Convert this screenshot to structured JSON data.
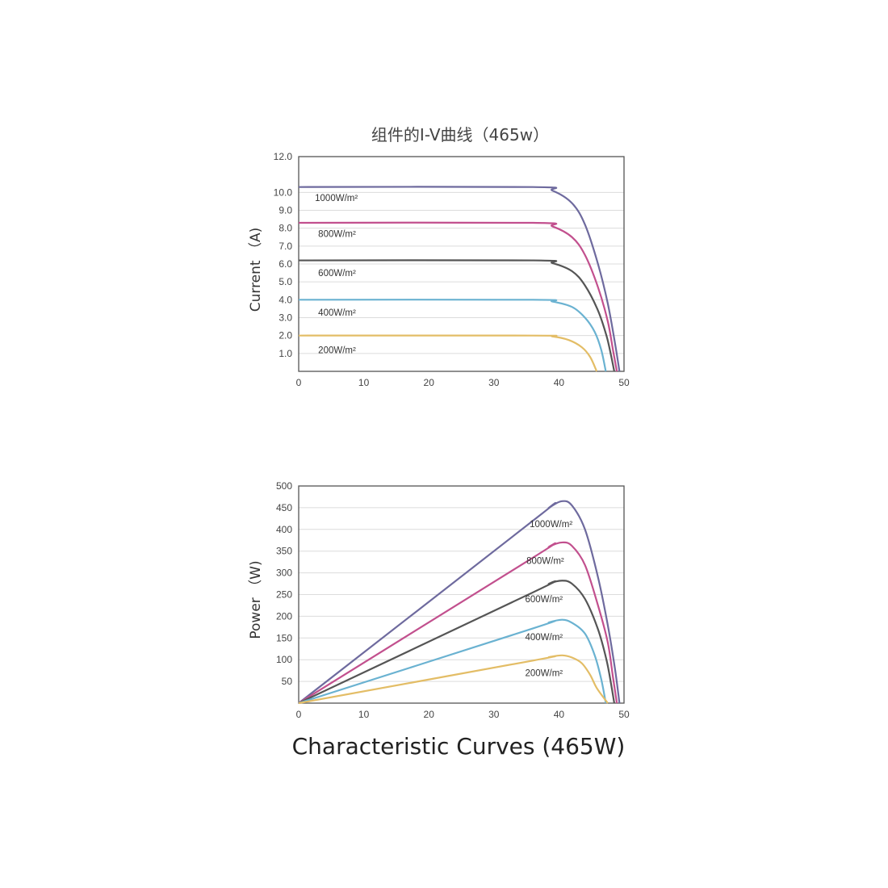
{
  "caption": "Characteristic Curves (465W)",
  "chart_data": [
    {
      "type": "line",
      "title": "组件的I-V曲线（465w）",
      "xlabel": "",
      "ylabel": "Current （A)",
      "xlim": [
        0,
        50
      ],
      "ylim": [
        0,
        12
      ],
      "x_ticks": [
        "0",
        "10",
        "20",
        "30",
        "40",
        "50"
      ],
      "y_ticks": [
        "1.0",
        "2.0",
        "3.0",
        "4.0",
        "5.0",
        "6.0",
        "7.0",
        "8.0",
        "9.0",
        "10.0",
        "12.0"
      ],
      "y_tick_values": [
        1,
        2,
        3,
        4,
        5,
        6,
        7,
        8,
        9,
        10,
        12
      ],
      "grid": true,
      "series": [
        {
          "name": "1000W/m²",
          "color": "#6e6a9e",
          "x": [
            0,
            36,
            39,
            42,
            44,
            46,
            47.5,
            48.6,
            49.3
          ],
          "y": [
            10.3,
            10.3,
            10.1,
            9.4,
            8.2,
            6.0,
            3.8,
            1.6,
            0
          ]
        },
        {
          "name": "800W/m²",
          "color": "#c2508e",
          "x": [
            0,
            36,
            39,
            42,
            44,
            46,
            47.5,
            48.3,
            48.9
          ],
          "y": [
            8.3,
            8.3,
            8.1,
            7.5,
            6.5,
            4.7,
            2.8,
            1.2,
            0
          ]
        },
        {
          "name": "600W/m²",
          "color": "#555555",
          "x": [
            0,
            36,
            39,
            42,
            44,
            46,
            47.3,
            48.0,
            48.5
          ],
          "y": [
            6.2,
            6.2,
            6.05,
            5.6,
            4.8,
            3.4,
            2.0,
            0.9,
            0
          ]
        },
        {
          "name": "400W/m²",
          "color": "#6ab2d1",
          "x": [
            0,
            36,
            39,
            42,
            44,
            45.5,
            46.5,
            47.2
          ],
          "y": [
            4.0,
            4.0,
            3.9,
            3.6,
            3.0,
            2.2,
            1.2,
            0
          ]
        },
        {
          "name": "200W/m²",
          "color": "#e3bd66",
          "x": [
            0,
            36,
            39,
            41.5,
            43.5,
            44.8,
            45.8
          ],
          "y": [
            2.0,
            2.0,
            1.95,
            1.75,
            1.35,
            0.8,
            0
          ]
        }
      ],
      "annotations": [
        {
          "text": "1000W/m²",
          "x": 2.5,
          "y": 9.7
        },
        {
          "text": "800W/m²",
          "x": 3,
          "y": 7.7
        },
        {
          "text": "600W/m²",
          "x": 3,
          "y": 5.5
        },
        {
          "text": "400W/m²",
          "x": 3,
          "y": 3.3
        },
        {
          "text": "200W/m²",
          "x": 3,
          "y": 1.2
        }
      ]
    },
    {
      "type": "line",
      "title": "",
      "xlabel": "",
      "ylabel": "Power （W)",
      "xlim": [
        0,
        50
      ],
      "ylim": [
        0,
        500
      ],
      "x_ticks": [
        "0",
        "10",
        "20",
        "30",
        "40",
        "50"
      ],
      "y_ticks": [
        "50",
        "100",
        "150",
        "200",
        "250",
        "300",
        "350",
        "400",
        "450",
        "500"
      ],
      "y_tick_values": [
        50,
        100,
        150,
        200,
        250,
        300,
        350,
        400,
        450,
        500
      ],
      "grid": true,
      "series": [
        {
          "name": "1000W/m²",
          "color": "#6e6a9e",
          "x": [
            0,
            36,
            38.5,
            40.5,
            42,
            44,
            46,
            47.5,
            48.6,
            49.3
          ],
          "y": [
            0,
            420,
            450,
            465,
            455,
            400,
            290,
            180,
            80,
            0
          ]
        },
        {
          "name": "800W/m²",
          "color": "#c2508e",
          "x": [
            0,
            36,
            38.5,
            40.5,
            42,
            44,
            46,
            47.5,
            48.3,
            48.9
          ],
          "y": [
            0,
            335,
            360,
            370,
            362,
            318,
            225,
            140,
            60,
            0
          ]
        },
        {
          "name": "600W/m²",
          "color": "#555555",
          "x": [
            0,
            36,
            38.5,
            40.5,
            42,
            44,
            46,
            47.3,
            48.0,
            48.5
          ],
          "y": [
            0,
            255,
            275,
            282,
            275,
            240,
            170,
            100,
            45,
            0
          ]
        },
        {
          "name": "400W/m²",
          "color": "#6ab2d1",
          "x": [
            0,
            36,
            38.5,
            40.5,
            42,
            44,
            45.5,
            46.5,
            47.2
          ],
          "y": [
            0,
            172,
            186,
            192,
            185,
            160,
            110,
            55,
            0
          ]
        },
        {
          "name": "200W/m²",
          "color": "#e3bd66",
          "x": [
            0,
            36,
            38.5,
            40.5,
            42,
            43.5,
            44.8,
            45.8,
            47.5
          ],
          "y": [
            0,
            98,
            106,
            110,
            105,
            92,
            65,
            35,
            0
          ]
        }
      ],
      "annotations": [
        {
          "text": "1000W/m²",
          "x": 35.5,
          "y": 413
        },
        {
          "text": "800W/m²",
          "x": 35,
          "y": 328
        },
        {
          "text": "600W/m²",
          "x": 34.8,
          "y": 240
        },
        {
          "text": "400W/m²",
          "x": 34.8,
          "y": 152
        },
        {
          "text": "200W/m²",
          "x": 34.8,
          "y": 70
        }
      ]
    }
  ]
}
